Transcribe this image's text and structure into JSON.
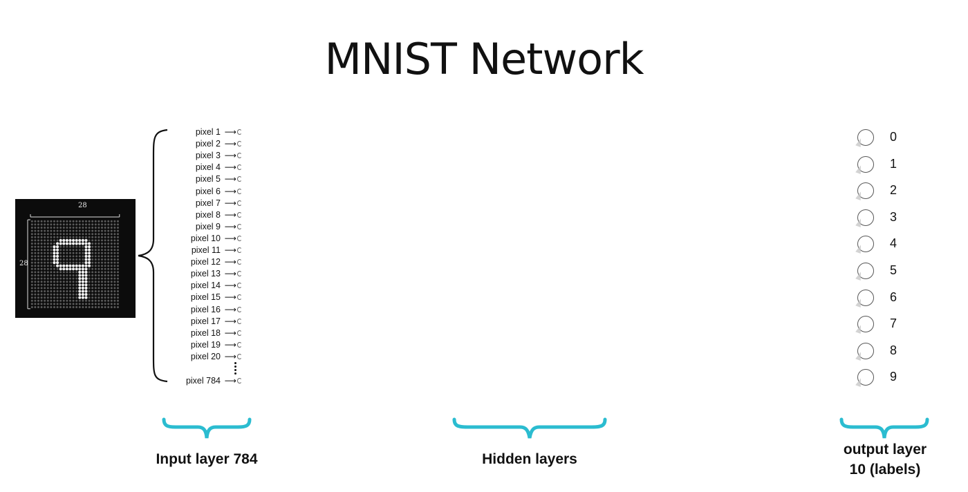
{
  "title": "MNIST Network",
  "image": {
    "width_label": "28",
    "height_label": "28",
    "digit": "9"
  },
  "input_layer": {
    "pixels": [
      "pixel 1",
      "pixel 2",
      "pixel 3",
      "pixel 4",
      "pixel 5",
      "pixel 6",
      "pixel 7",
      "pixel 8",
      "pixel 9",
      "pixel 10",
      "pixel 11",
      "pixel 12",
      "pixel 13",
      "pixel 14",
      "pixel 15",
      "pixel 16",
      "pixel 17",
      "pixel 18",
      "pixel 19",
      "pixel 20"
    ],
    "last_pixel": "pixel 784",
    "arrow": "⟶",
    "caption": "Input layer 784"
  },
  "hidden_layers": {
    "caption": "Hidden layers"
  },
  "output_layer": {
    "labels": [
      "0",
      "1",
      "2",
      "3",
      "4",
      "5",
      "6",
      "7",
      "8",
      "9"
    ],
    "caption_line1": "output layer",
    "caption_line2": "10 (labels)"
  },
  "colors": {
    "brace_accent": "#2bbcd0",
    "image_background": "#0c0c0c"
  }
}
